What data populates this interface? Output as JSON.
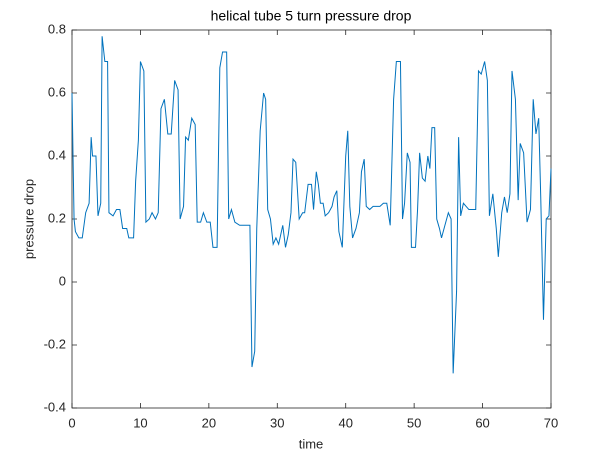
{
  "chart_data": {
    "type": "line",
    "title": "helical tube 5 turn pressure drop",
    "xlabel": "time",
    "ylabel": "pressure drop",
    "xlim": [
      0,
      70
    ],
    "ylim": [
      -0.4,
      0.8
    ],
    "xticks": [
      0,
      10,
      20,
      30,
      40,
      50,
      60,
      70
    ],
    "yticks": [
      -0.4,
      -0.2,
      0,
      0.2,
      0.4,
      0.6,
      0.8
    ],
    "x": [
      0,
      0.3,
      0.5,
      1,
      1.5,
      2,
      2.5,
      2.8,
      3,
      3.5,
      3.8,
      4.2,
      4.4,
      4.8,
      5.2,
      5.4,
      6,
      6.5,
      7,
      7.4,
      8,
      8.3,
      9,
      9.3,
      9.7,
      10,
      10.5,
      10.8,
      11.3,
      11.7,
      12.2,
      12.6,
      13,
      13.5,
      14,
      14.5,
      15,
      15.5,
      15.8,
      16.3,
      16.6,
      17,
      17.5,
      18,
      18.3,
      18.8,
      19.2,
      19.7,
      20.2,
      20.6,
      21.2,
      21.6,
      22,
      22.6,
      22.9,
      23.3,
      23.8,
      24.5,
      25,
      25.5,
      26,
      26.3,
      26.7,
      27,
      27.5,
      28,
      28.3,
      28.6,
      29,
      29.4,
      29.8,
      30.2,
      30.8,
      31.2,
      31.6,
      32,
      32.3,
      32.7,
      33.2,
      33.7,
      34,
      34.5,
      35,
      35.3,
      35.7,
      36,
      36.3,
      36.7,
      37,
      37.5,
      38,
      38.3,
      38.7,
      39,
      39.5,
      40,
      40.3,
      40.6,
      41,
      41.5,
      42,
      42.3,
      42.7,
      43,
      43.5,
      44,
      44.5,
      45,
      45.5,
      46,
      46.5,
      47,
      47.4,
      48,
      48.3,
      48.6,
      49,
      49.4,
      49.6,
      50.2,
      50.5,
      50.8,
      51.2,
      51.6,
      52,
      52.3,
      52.6,
      53,
      53.3,
      53.7,
      54,
      54.5,
      55,
      55.4,
      55.7,
      56.2,
      56.5,
      56.8,
      57.2,
      57.6,
      58,
      58.5,
      59,
      59.4,
      59.8,
      60.3,
      60.7,
      61,
      61.5,
      62,
      62.3,
      62.8,
      63.2,
      63.6,
      64,
      64.3,
      64.8,
      65.2,
      65.5,
      66,
      66.5,
      67,
      67.4,
      67.8,
      68.2,
      68.5,
      68.9,
      69.3,
      69.7,
      70
    ],
    "series": [
      {
        "color": "#0072bd",
        "values": [
          0.6,
          0.2,
          0.16,
          0.14,
          0.14,
          0.22,
          0.25,
          0.46,
          0.4,
          0.4,
          0.21,
          0.25,
          0.78,
          0.7,
          0.7,
          0.22,
          0.21,
          0.23,
          0.23,
          0.17,
          0.17,
          0.14,
          0.14,
          0.32,
          0.45,
          0.7,
          0.67,
          0.19,
          0.2,
          0.22,
          0.2,
          0.22,
          0.55,
          0.58,
          0.47,
          0.47,
          0.64,
          0.61,
          0.2,
          0.24,
          0.46,
          0.45,
          0.52,
          0.5,
          0.19,
          0.19,
          0.22,
          0.19,
          0.19,
          0.11,
          0.11,
          0.68,
          0.73,
          0.73,
          0.2,
          0.23,
          0.19,
          0.18,
          0.18,
          0.18,
          0.18,
          -0.27,
          -0.22,
          0.17,
          0.48,
          0.6,
          0.58,
          0.23,
          0.2,
          0.12,
          0.14,
          0.12,
          0.18,
          0.11,
          0.15,
          0.22,
          0.39,
          0.38,
          0.2,
          0.22,
          0.22,
          0.31,
          0.31,
          0.23,
          0.35,
          0.31,
          0.25,
          0.25,
          0.21,
          0.22,
          0.24,
          0.27,
          0.29,
          0.16,
          0.11,
          0.4,
          0.48,
          0.24,
          0.14,
          0.17,
          0.22,
          0.35,
          0.39,
          0.24,
          0.23,
          0.24,
          0.24,
          0.24,
          0.25,
          0.25,
          0.18,
          0.58,
          0.7,
          0.7,
          0.2,
          0.25,
          0.41,
          0.38,
          0.11,
          0.11,
          0.23,
          0.41,
          0.33,
          0.32,
          0.4,
          0.36,
          0.49,
          0.49,
          0.2,
          0.17,
          0.14,
          0.18,
          0.22,
          0.2,
          -0.29,
          -0.03,
          0.46,
          0.21,
          0.25,
          0.24,
          0.23,
          0.23,
          0.23,
          0.67,
          0.66,
          0.7,
          0.64,
          0.21,
          0.28,
          0.17,
          0.08,
          0.22,
          0.27,
          0.22,
          0.28,
          0.67,
          0.58,
          0.26,
          0.44,
          0.41,
          0.19,
          0.23,
          0.58,
          0.47,
          0.52,
          0.27,
          -0.12,
          0.2,
          0.21,
          0.36
        ]
      }
    ]
  }
}
